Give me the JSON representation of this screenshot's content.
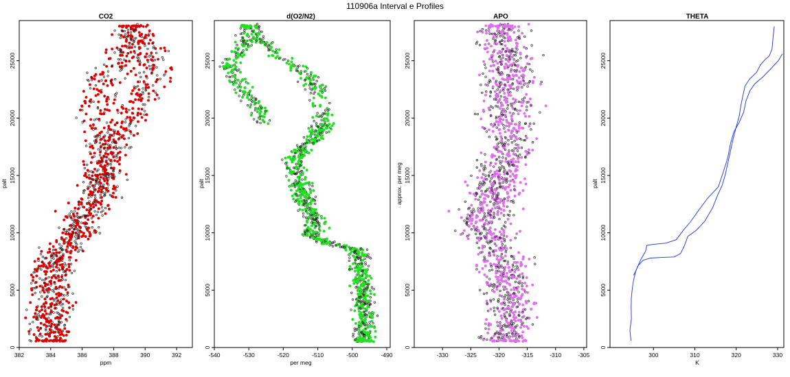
{
  "figure": {
    "title": "110906a   Interval e Profiles",
    "colors": {
      "co2": "#e00000",
      "o2n2": "#22e022",
      "apo": "#e070f0",
      "theta": "#1830e0",
      "outline": "#202020"
    }
  },
  "chart_data": [
    {
      "type": "scatter",
      "title": "CO2",
      "xlabel": "ppm",
      "ylabel": "palt",
      "xlim": [
        382,
        393
      ],
      "ylim": [
        0,
        28500
      ],
      "xticks": [
        382,
        384,
        386,
        388,
        390,
        392
      ],
      "yticks": [
        0,
        5000,
        10000,
        15000,
        20000,
        25000
      ],
      "grid": false,
      "series": [
        {
          "color": "#e00000",
          "profile": [
            [
              600,
              384.0
            ],
            [
              2000,
              383.9
            ],
            [
              4000,
              384.0
            ],
            [
              5500,
              383.9
            ],
            [
              7000,
              384.2
            ],
            [
              8500,
              384.7
            ],
            [
              10000,
              385.6
            ],
            [
              11500,
              386.1
            ],
            [
              13000,
              386.8
            ],
            [
              14500,
              387.3
            ],
            [
              16500,
              387.2
            ],
            [
              18000,
              387.4
            ],
            [
              19500,
              387.0
            ],
            [
              21000,
              386.9
            ],
            [
              22500,
              387.2
            ],
            [
              24000,
              387.6
            ],
            [
              25500,
              388.6
            ],
            [
              26500,
              389.3
            ],
            [
              27500,
              389.2
            ],
            [
              28000,
              389.2
            ]
          ],
          "profile2": [
            [
              16000,
              387.4
            ],
            [
              17500,
              388.0
            ],
            [
              19000,
              388.6
            ],
            [
              20500,
              389.3
            ],
            [
              22000,
              389.9
            ],
            [
              23500,
              390.3
            ],
            [
              25000,
              390.4
            ],
            [
              26500,
              389.8
            ],
            [
              27500,
              389.5
            ]
          ],
          "spread": 0.9,
          "points_per_km": 48
        }
      ]
    },
    {
      "type": "scatter",
      "title": "d(O2/N2)",
      "xlabel": "per meg",
      "ylabel": "palt",
      "xlim": [
        -540,
        -489
      ],
      "ylim": [
        0,
        28500
      ],
      "xticks": [
        -540,
        -530,
        -520,
        -510,
        -500,
        -490
      ],
      "yticks": [
        0,
        5000,
        10000,
        15000,
        20000,
        25000
      ],
      "grid": false,
      "series": [
        {
          "color": "#22e022",
          "profile": [
            [
              600,
              -496.5
            ],
            [
              2500,
              -496.5
            ],
            [
              4500,
              -497.0
            ],
            [
              6500,
              -497.5
            ],
            [
              8500,
              -498.5
            ],
            [
              9500,
              -511.5
            ],
            [
              11000,
              -511.0
            ],
            [
              12500,
              -513.0
            ],
            [
              14000,
              -515.0
            ],
            [
              15500,
              -516.0
            ],
            [
              16500,
              -517.0
            ],
            [
              17500,
              -514.0
            ],
            [
              18500,
              -510.0
            ],
            [
              19500,
              -508.0
            ],
            [
              20500,
              -508.5
            ],
            [
              22000,
              -510.0
            ],
            [
              23500,
              -512.0
            ],
            [
              24500,
              -516.0
            ],
            [
              25500,
              -521.0
            ],
            [
              26500,
              -525.5
            ],
            [
              27500,
              -529.0
            ],
            [
              28000,
              -530.0
            ]
          ],
          "profile2": [
            [
              19500,
              -526.0
            ],
            [
              20500,
              -526.5
            ],
            [
              22000,
              -530.0
            ],
            [
              23500,
              -534.0
            ],
            [
              24500,
              -535.5
            ],
            [
              25500,
              -534.0
            ],
            [
              26500,
              -531.0
            ],
            [
              27500,
              -530.0
            ]
          ],
          "spread": 2.2,
          "points_per_km": 48
        }
      ]
    },
    {
      "type": "scatter",
      "title": "APO",
      "xlabel": "",
      "ylabel": "approx. per meg",
      "xlim": [
        -335,
        -304.5
      ],
      "ylim": [
        0,
        28500
      ],
      "xticks": [
        -330,
        -325,
        -320,
        -315,
        -310,
        -305
      ],
      "yticks": [
        0,
        5000,
        10000,
        15000,
        20000,
        25000
      ],
      "grid": false,
      "series": [
        {
          "color": "#e070f0",
          "profile": [
            [
              600,
              -318.5
            ],
            [
              3000,
              -318.0
            ],
            [
              6000,
              -318.5
            ],
            [
              9000,
              -321.0
            ],
            [
              11000,
              -322.5
            ],
            [
              13000,
              -321.0
            ],
            [
              15500,
              -319.5
            ],
            [
              18000,
              -318.0
            ],
            [
              21000,
              -318.5
            ],
            [
              24000,
              -318.5
            ],
            [
              26500,
              -319.0
            ],
            [
              28000,
              -319.5
            ]
          ],
          "spread": 3.2,
          "points_per_km": 52
        }
      ]
    },
    {
      "type": "line",
      "title": "THETA",
      "xlabel": "K",
      "ylabel": "palt",
      "xlim": [
        289.5,
        331.5
      ],
      "ylim": [
        0,
        28500
      ],
      "xticks": [
        300,
        310,
        320,
        330
      ],
      "yticks": [
        0,
        5000,
        10000,
        15000,
        20000,
        25000
      ],
      "grid": false,
      "series": [
        {
          "color": "#1830e0",
          "points": [
            [
              294.5,
              600
            ],
            [
              294.4,
              1500
            ],
            [
              294.5,
              2500
            ],
            [
              294.5,
              3500
            ],
            [
              294.6,
              4300
            ],
            [
              295.0,
              5000
            ],
            [
              295.2,
              5800
            ],
            [
              295.6,
              6600
            ],
            [
              296.3,
              7100
            ],
            [
              297.6,
              7600
            ],
            [
              299.3,
              7800
            ],
            [
              302.0,
              7850
            ],
            [
              305.2,
              7900
            ],
            [
              306.5,
              8200
            ],
            [
              307.6,
              8900
            ],
            [
              308.3,
              9700
            ],
            [
              310.2,
              10200
            ],
            [
              312.5,
              11000
            ],
            [
              314.3,
              12200
            ],
            [
              315.6,
              13300
            ],
            [
              316.7,
              14100
            ],
            [
              317.4,
              15000
            ],
            [
              318.0,
              16000
            ],
            [
              318.6,
              17000
            ],
            [
              319.2,
              18000
            ],
            [
              319.8,
              19100
            ],
            [
              320.6,
              20200
            ],
            [
              321.2,
              21000
            ],
            [
              321.6,
              22000
            ],
            [
              322.1,
              22800
            ],
            [
              323.3,
              23400
            ],
            [
              325.0,
              24000
            ],
            [
              325.8,
              24600
            ],
            [
              327.0,
              25100
            ],
            [
              328.1,
              25400
            ],
            [
              328.8,
              26000
            ],
            [
              329.0,
              27000
            ],
            [
              329.2,
              28000
            ]
          ]
        },
        {
          "color": "#1830e0",
          "points": [
            [
              295.2,
              6300
            ],
            [
              296.0,
              6900
            ],
            [
              297.0,
              7700
            ],
            [
              298.0,
              8400
            ],
            [
              298.5,
              8900
            ],
            [
              300.0,
              9000
            ],
            [
              303.0,
              9100
            ],
            [
              305.5,
              9400
            ],
            [
              307.0,
              10200
            ],
            [
              309.0,
              11000
            ],
            [
              311.0,
              12000
            ],
            [
              313.0,
              13000
            ],
            [
              315.5,
              14000
            ],
            [
              316.8,
              15200
            ],
            [
              318.0,
              16500
            ],
            [
              318.8,
              17800
            ],
            [
              319.3,
              18800
            ],
            [
              320.8,
              19600
            ],
            [
              321.8,
              20500
            ],
            [
              322.4,
              21500
            ],
            [
              323.4,
              22400
            ],
            [
              324.6,
              23000
            ],
            [
              326.5,
              23600
            ],
            [
              328.2,
              24300
            ],
            [
              330.0,
              25000
            ],
            [
              331.0,
              25600
            ]
          ]
        }
      ]
    }
  ]
}
